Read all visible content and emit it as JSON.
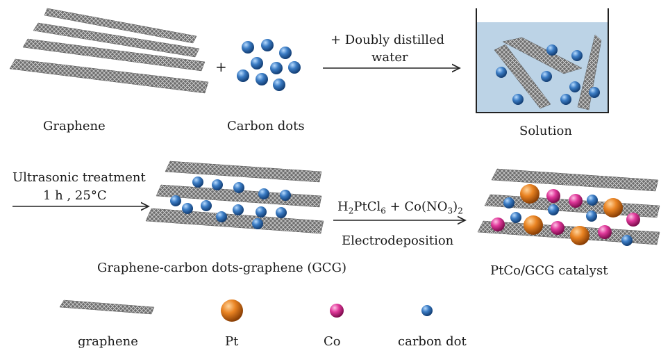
{
  "labels": {
    "graphene": "Graphene",
    "carbon_dots": "Carbon dots",
    "solution": "Solution",
    "step1_line1": "+ Doubly distilled",
    "step1_line2": "water",
    "step2_line1": "Ultrasonic treatment",
    "step2_line2": "1 h , 25°C",
    "gcg": "Graphene-carbon dots-graphene (GCG)",
    "step3_line2": "Electrodeposition",
    "catalyst": "PtCo/GCG  catalyst",
    "plus": "+"
  },
  "reagent": {
    "a": "H",
    "a_sub": "2",
    "b": "PtCl",
    "b_sub": "6",
    "c": " + Co(NO",
    "c_sub": "3",
    "d": ")",
    "d_sub": "2"
  },
  "legend": {
    "graphene": "graphene",
    "pt": "Pt",
    "co": "Co",
    "carbon_dot": "carbon dot"
  },
  "colors": {
    "carbon_dot": "#2f6db3",
    "pt": "#e07a1c",
    "co": "#d9308f",
    "solution": "#bcd3e6",
    "sheet": "#8a8a8a"
  }
}
